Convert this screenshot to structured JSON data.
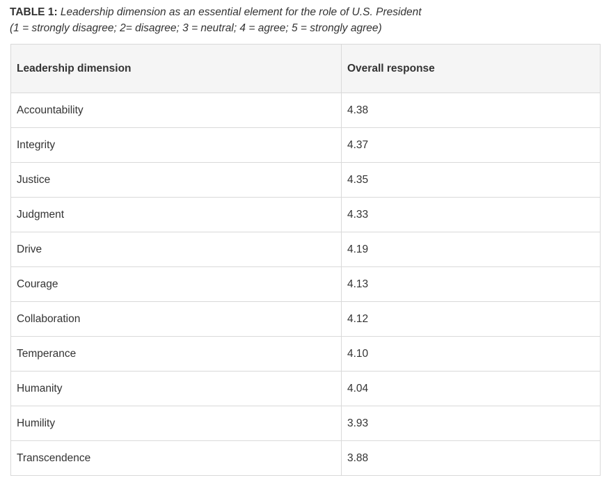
{
  "caption": {
    "label": "TABLE 1:",
    "title": "Leadership dimension as an essential element for the role of U.S. President",
    "scale": "(1 = strongly disagree; 2= disagree; 3 = neutral; 4 = agree; 5 = strongly agree)"
  },
  "table": {
    "headers": [
      "Leadership dimension",
      "Overall response"
    ],
    "rows": [
      [
        "Accountability",
        "4.38"
      ],
      [
        "Integrity",
        "4.37"
      ],
      [
        "Justice",
        "4.35"
      ],
      [
        "Judgment",
        "4.33"
      ],
      [
        "Drive",
        "4.19"
      ],
      [
        "Courage",
        "4.13"
      ],
      [
        "Collaboration",
        "4.12"
      ],
      [
        "Temperance",
        "4.10"
      ],
      [
        "Humanity",
        "4.04"
      ],
      [
        "Humility",
        "3.93"
      ],
      [
        "Transcendence",
        "3.88"
      ]
    ]
  }
}
